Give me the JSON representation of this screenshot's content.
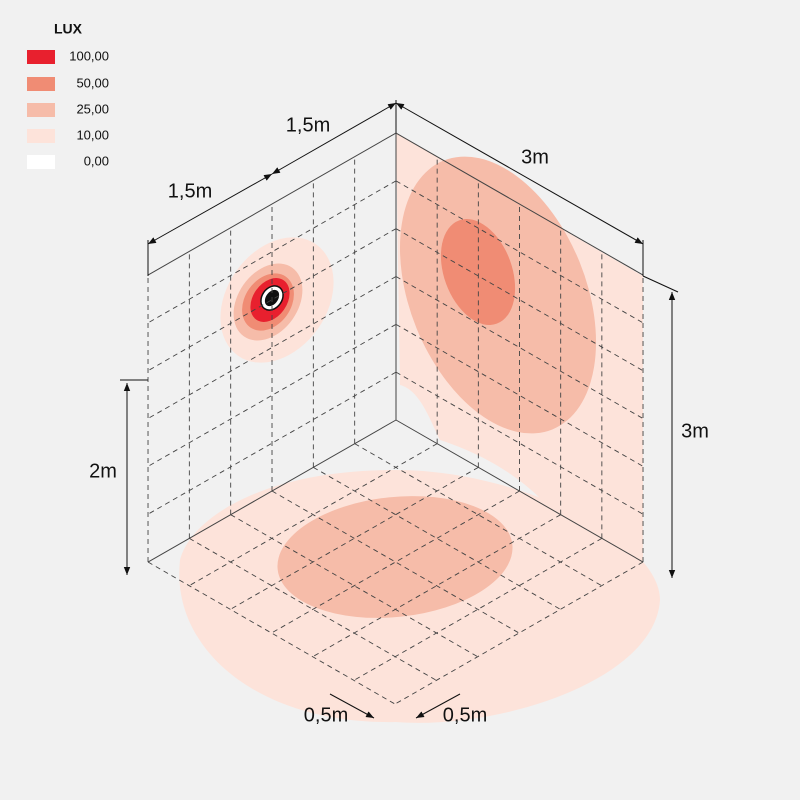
{
  "legend": {
    "title": "LUX",
    "items": [
      {
        "label": "100,00",
        "color": "#e8202e"
      },
      {
        "label": "50,00",
        "color": "#f08c74"
      },
      {
        "label": "25,00",
        "color": "#f6bca9"
      },
      {
        "label": "10,00",
        "color": "#fde3da"
      },
      {
        "label": "0,00",
        "color": "#ffffff"
      }
    ]
  },
  "dimensions": [
    {
      "label": "1,5m"
    },
    {
      "label": "1,5m"
    },
    {
      "label": "3m"
    },
    {
      "label": "2m"
    },
    {
      "label": "3m"
    },
    {
      "label": "0,5m"
    },
    {
      "label": "0,5m"
    }
  ]
}
